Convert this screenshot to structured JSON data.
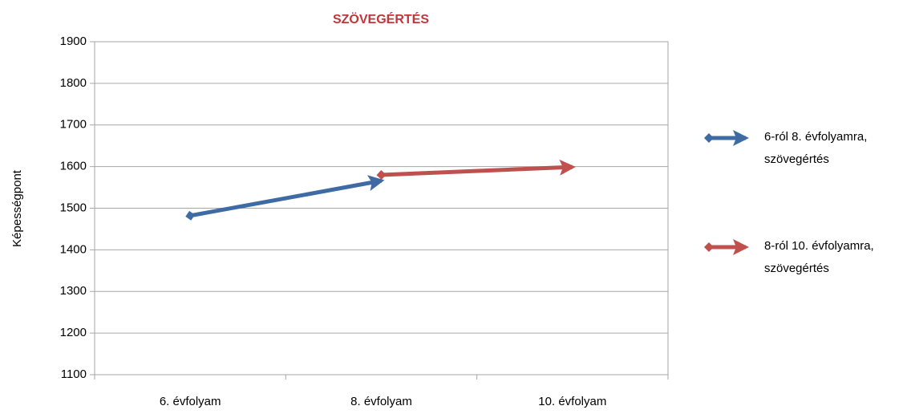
{
  "chart_data": {
    "type": "line",
    "title": "SZÖVEGÉRTÉS",
    "y_label": "Képességpont",
    "categories": [
      "6. évfolyam",
      "8. évfolyam",
      "10. évfolyam"
    ],
    "series": [
      {
        "name": "6-ról 8. évfolyamra, szövegértés",
        "color": "#3f6ba5",
        "values": [
          1482,
          1566,
          null
        ]
      },
      {
        "name": "8-ról 10. évfolyamra, szövegértés",
        "color": "#c0504d",
        "values": [
          null,
          1580,
          1599
        ]
      }
    ],
    "ylim": [
      1100,
      1900
    ],
    "yticks": [
      1100,
      1200,
      1300,
      1400,
      1500,
      1600,
      1700,
      1800,
      1900
    ],
    "grid": true,
    "legend": "right",
    "title_color": "#c0363a"
  }
}
